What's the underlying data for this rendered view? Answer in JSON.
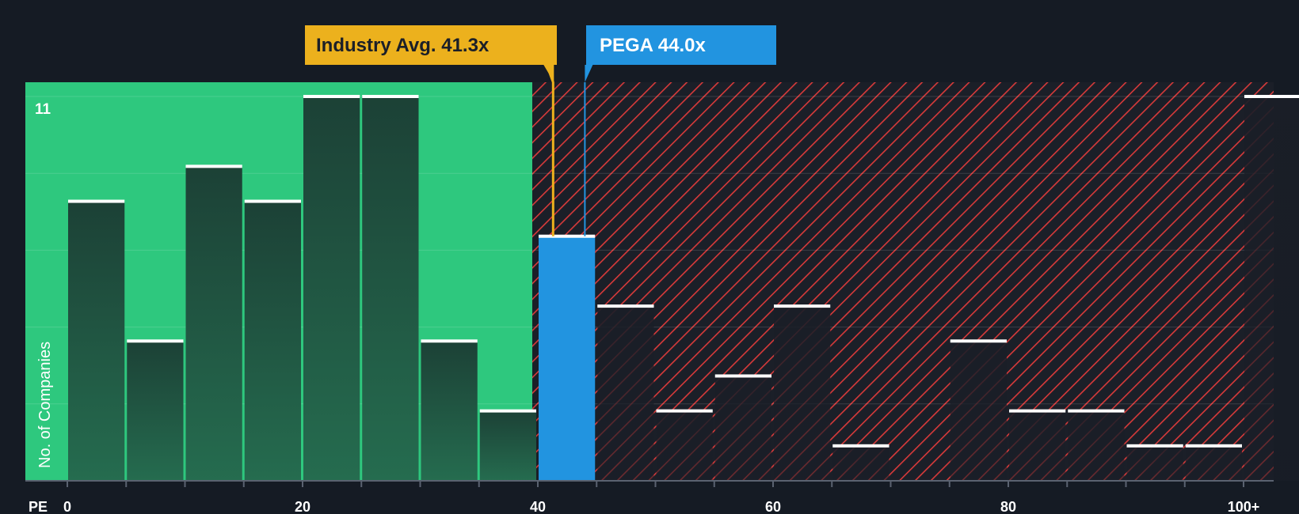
{
  "colors": {
    "background": "#151b24",
    "fair_zone": "#2ec87e",
    "over_zone_stripe": "#d83a3a",
    "industry_callout": "#ecb11d",
    "company_callout": "#2294e0",
    "bar_fill": "#1e4a3a",
    "bar_cap": "#ffffff"
  },
  "chart_data": {
    "type": "bar",
    "xlabel": "PE",
    "ylabel": "No. of Companies",
    "x_ticks": [
      "0",
      "20",
      "40",
      "60",
      "80",
      "100+"
    ],
    "y_max_label": "11",
    "ylim": [
      0,
      11
    ],
    "xlim": [
      0,
      103
    ],
    "bin_width": 5,
    "bins_start": [
      0,
      5,
      10,
      15,
      20,
      25,
      30,
      35,
      40,
      45,
      50,
      55,
      60,
      65,
      70,
      75,
      80,
      85,
      90,
      95,
      100
    ],
    "values": [
      8,
      4,
      9,
      8,
      11,
      11,
      4,
      2,
      7,
      5,
      2,
      3,
      5,
      1,
      0,
      4,
      2,
      2,
      1,
      1,
      11
    ],
    "highlight_bin_index": 8,
    "fair_zone_max_pe": 40,
    "industry_avg": {
      "label": "Industry Avg. 41.3x",
      "value": 41.3
    },
    "company": {
      "label": "PEGA 44.0x",
      "value": 44.0
    }
  }
}
